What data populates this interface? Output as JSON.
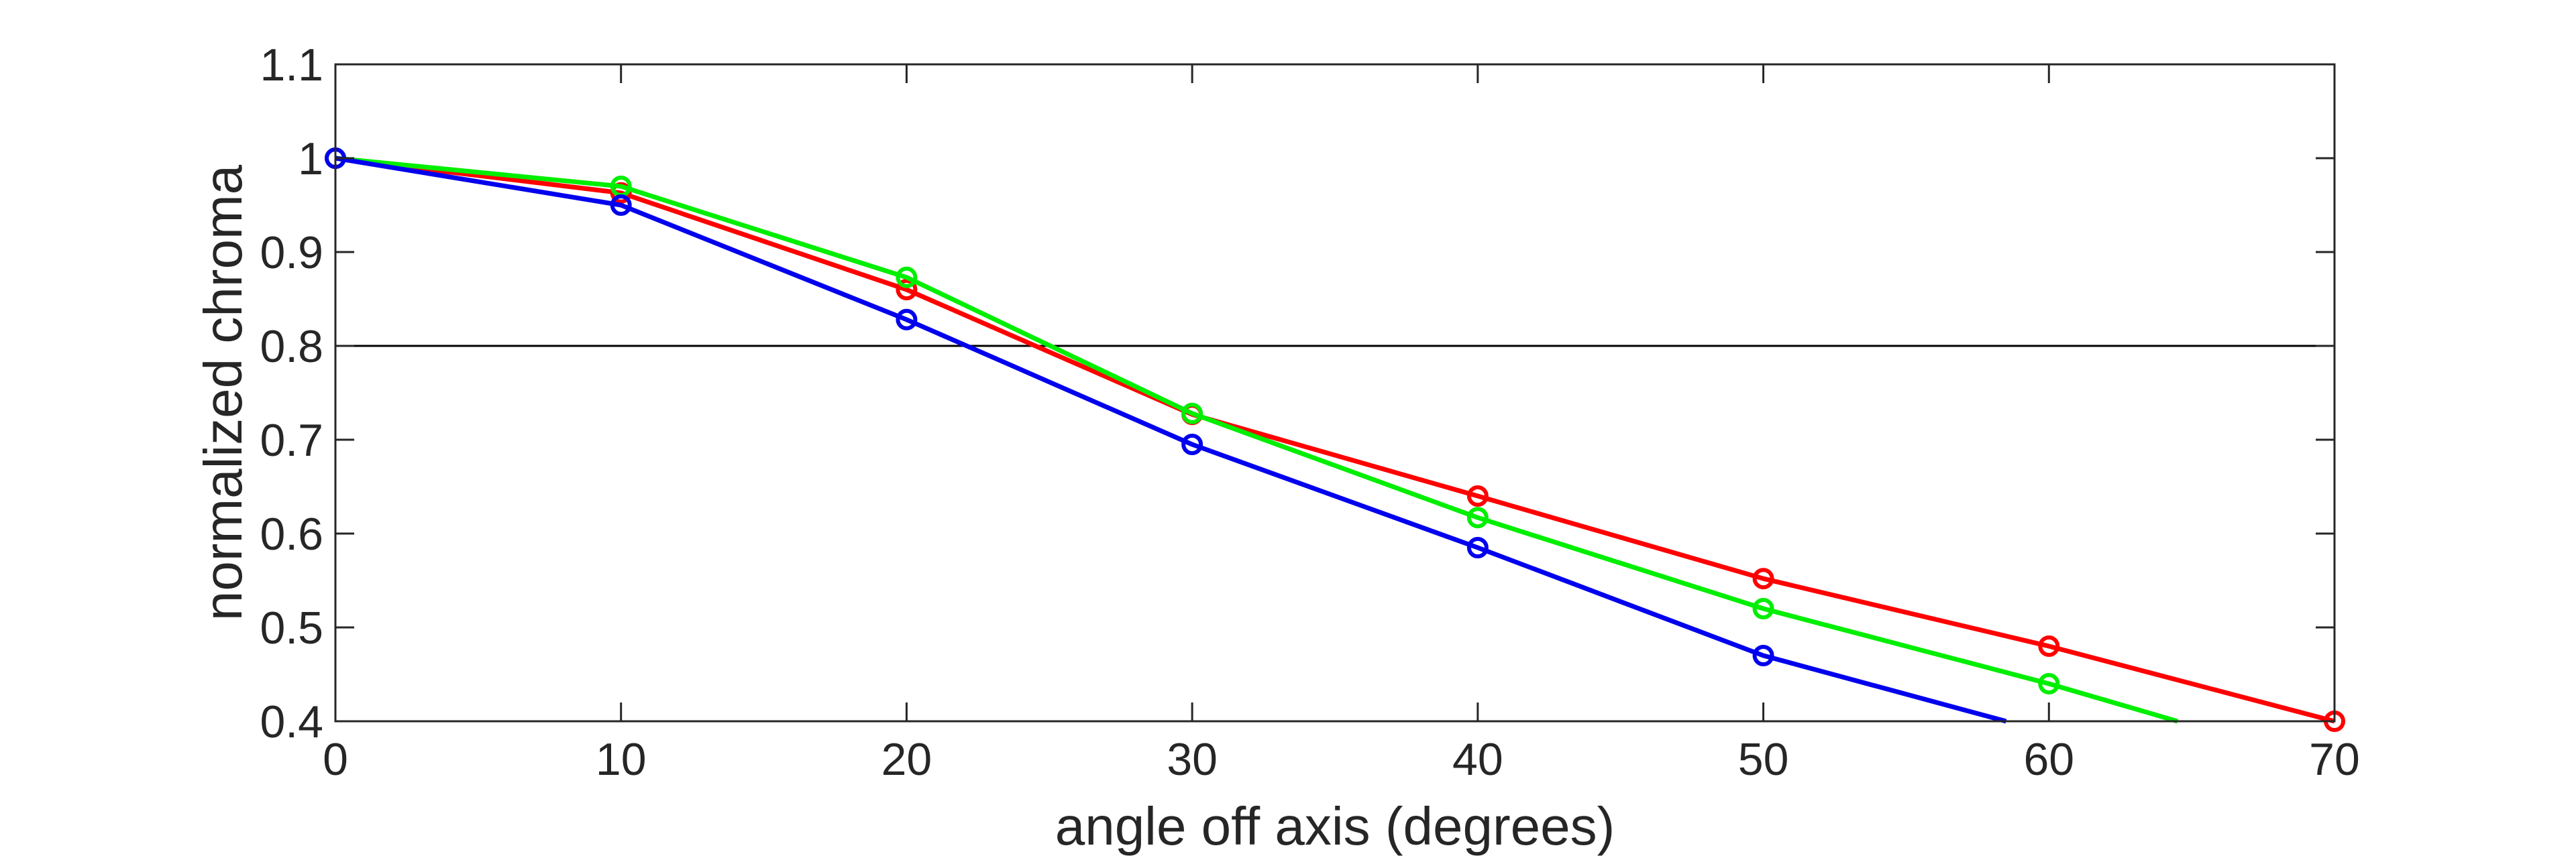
{
  "chart_data": {
    "type": "line",
    "xlabel": "angle off axis (degrees)",
    "ylabel": "normalized chroma",
    "xlim": [
      0,
      70
    ],
    "ylim": [
      0.4,
      1.1
    ],
    "xticks": [
      0,
      10,
      20,
      30,
      40,
      50,
      60,
      70
    ],
    "xtick_labels": [
      "0",
      "10",
      "20",
      "30",
      "40",
      "50",
      "60",
      "70"
    ],
    "yticks": [
      0.4,
      0.5,
      0.6,
      0.7,
      0.8,
      0.9,
      1.0,
      1.1
    ],
    "ytick_labels": [
      "0.4",
      "0.5",
      "0.6",
      "0.7",
      "0.8",
      "0.9",
      "1",
      "1.1"
    ],
    "grid": false,
    "reference_line": {
      "y": 0.8,
      "color": "#000000"
    },
    "series": [
      {
        "color": "#ff0000",
        "x": [
          0,
          10,
          20,
          30,
          40,
          50,
          60,
          70
        ],
        "y": [
          1.0,
          0.963,
          0.86,
          0.727,
          0.64,
          0.552,
          0.48,
          0.4
        ],
        "markers": [
          true,
          true,
          true,
          true,
          true,
          true,
          true,
          true
        ]
      },
      {
        "color": "#00ee00",
        "x": [
          0,
          10,
          20,
          30,
          40,
          50,
          60,
          64.5
        ],
        "y": [
          1.0,
          0.97,
          0.873,
          0.728,
          0.617,
          0.52,
          0.44,
          0.4
        ],
        "markers": [
          true,
          true,
          true,
          true,
          true,
          true,
          true,
          false
        ]
      },
      {
        "color": "#0000ee",
        "x": [
          0,
          10,
          20,
          30,
          40,
          50,
          58.5
        ],
        "y": [
          1.0,
          0.95,
          0.828,
          0.695,
          0.585,
          0.47,
          0.4
        ],
        "markers": [
          true,
          true,
          true,
          true,
          true,
          true,
          false
        ]
      }
    ]
  }
}
